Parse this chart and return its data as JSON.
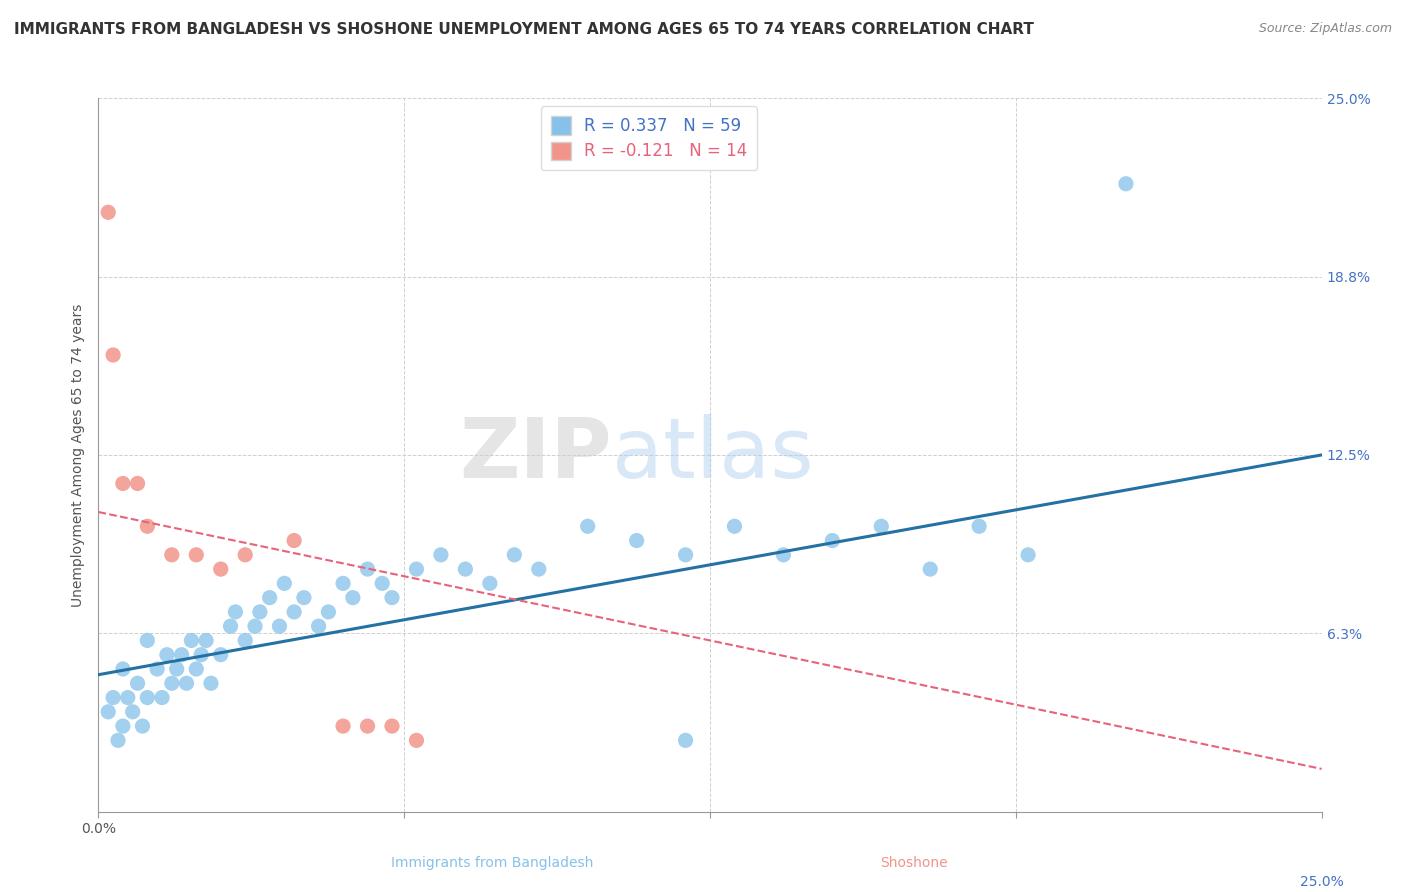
{
  "title": "IMMIGRANTS FROM BANGLADESH VS SHOSHONE UNEMPLOYMENT AMONG AGES 65 TO 74 YEARS CORRELATION CHART",
  "source": "Source: ZipAtlas.com",
  "xlabel_left": "Immigrants from Bangladesh",
  "xlabel_right": "Shoshone",
  "ylabel": "Unemployment Among Ages 65 to 74 years",
  "xlim": [
    0.0,
    0.25
  ],
  "ylim": [
    0.0,
    0.25
  ],
  "ytick_vals": [
    0.0,
    0.0625,
    0.125,
    0.1875,
    0.25
  ],
  "ytick_labels": [
    "",
    "6.3%",
    "12.5%",
    "18.8%",
    "25.0%"
  ],
  "xtick_vals": [
    0.0,
    0.0625,
    0.125,
    0.1875,
    0.25
  ],
  "xtick_labels_left": [
    "0.0%",
    "",
    "",
    "",
    ""
  ],
  "xtick_labels_right": "25.0%",
  "watermark_zip": "ZIP",
  "watermark_atlas": "atlas",
  "legend_blue_r": "R = 0.337",
  "legend_blue_n": "N = 59",
  "legend_pink_r": "R = -0.121",
  "legend_pink_n": "N = 14",
  "blue_color": "#85C1E9",
  "pink_color": "#F1948A",
  "blue_line_color": "#2471A3",
  "pink_line_color": "#E8627A",
  "blue_scatter_x": [
    0.002,
    0.003,
    0.004,
    0.005,
    0.005,
    0.006,
    0.007,
    0.008,
    0.009,
    0.01,
    0.01,
    0.012,
    0.013,
    0.014,
    0.015,
    0.016,
    0.017,
    0.018,
    0.019,
    0.02,
    0.021,
    0.022,
    0.023,
    0.025,
    0.027,
    0.028,
    0.03,
    0.032,
    0.033,
    0.035,
    0.037,
    0.038,
    0.04,
    0.042,
    0.045,
    0.047,
    0.05,
    0.052,
    0.055,
    0.058,
    0.06,
    0.065,
    0.07,
    0.075,
    0.08,
    0.085,
    0.09,
    0.1,
    0.11,
    0.12,
    0.13,
    0.14,
    0.15,
    0.16,
    0.17,
    0.18,
    0.19,
    0.21,
    0.12
  ],
  "blue_scatter_y": [
    0.035,
    0.04,
    0.025,
    0.03,
    0.05,
    0.04,
    0.035,
    0.045,
    0.03,
    0.04,
    0.06,
    0.05,
    0.04,
    0.055,
    0.045,
    0.05,
    0.055,
    0.045,
    0.06,
    0.05,
    0.055,
    0.06,
    0.045,
    0.055,
    0.065,
    0.07,
    0.06,
    0.065,
    0.07,
    0.075,
    0.065,
    0.08,
    0.07,
    0.075,
    0.065,
    0.07,
    0.08,
    0.075,
    0.085,
    0.08,
    0.075,
    0.085,
    0.09,
    0.085,
    0.08,
    0.09,
    0.085,
    0.1,
    0.095,
    0.09,
    0.1,
    0.09,
    0.095,
    0.1,
    0.085,
    0.1,
    0.09,
    0.22,
    0.025
  ],
  "pink_scatter_x": [
    0.002,
    0.003,
    0.005,
    0.008,
    0.01,
    0.015,
    0.02,
    0.025,
    0.03,
    0.04,
    0.05,
    0.055,
    0.06,
    0.065
  ],
  "pink_scatter_y": [
    0.21,
    0.16,
    0.115,
    0.115,
    0.1,
    0.09,
    0.09,
    0.085,
    0.09,
    0.095,
    0.03,
    0.03,
    0.03,
    0.025
  ],
  "blue_line_x": [
    0.0,
    0.25
  ],
  "blue_line_y_start": 0.048,
  "blue_line_y_end": 0.125,
  "pink_line_x": [
    0.0,
    0.25
  ],
  "pink_line_y_start": 0.105,
  "pink_line_y_end": 0.015,
  "grid_color": "#d0d0d0",
  "background_color": "#ffffff",
  "title_fontsize": 11,
  "axis_label_fontsize": 10,
  "tick_fontsize": 10,
  "legend_fontsize": 12,
  "right_tick_color": "#4472c4"
}
